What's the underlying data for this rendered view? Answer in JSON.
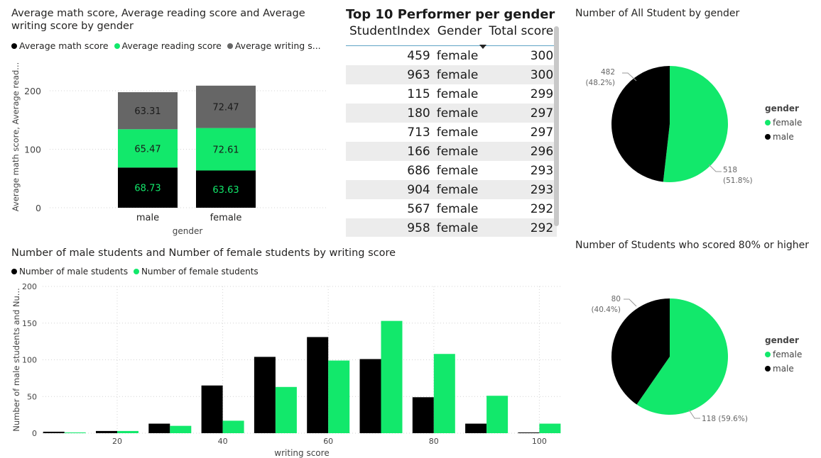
{
  "colors": {
    "math": "#000000",
    "reading": "#12e86b",
    "writing": "#666666",
    "female": "#12e86b",
    "male": "#000000",
    "grid": "#d4d4d4",
    "axis_text": "#444444"
  },
  "stacked": {
    "title_line1": "Average math score, Average reading score and Average",
    "title_line2": "writing score by gender",
    "legend": [
      "Average math score",
      "Average reading score",
      "Average writing s..."
    ],
    "ylabel": "Average math score, Average read...",
    "xlabel": "gender",
    "yticks": [
      "0",
      "100",
      "200"
    ]
  },
  "table": {
    "title": "Top 10 Performer per gender",
    "headers": [
      "StudentIndex",
      "Gender",
      "Total score"
    ],
    "rows": [
      [
        "459",
        "female",
        "300"
      ],
      [
        "963",
        "female",
        "300"
      ],
      [
        "115",
        "female",
        "299"
      ],
      [
        "180",
        "female",
        "297"
      ],
      [
        "713",
        "female",
        "297"
      ],
      [
        "166",
        "female",
        "296"
      ],
      [
        "686",
        "female",
        "293"
      ],
      [
        "904",
        "female",
        "293"
      ],
      [
        "567",
        "female",
        "292"
      ],
      [
        "958",
        "female",
        "292"
      ]
    ]
  },
  "hist": {
    "title": "Number of male students and Number of female students by writing score",
    "legend": [
      "Number of male students",
      "Number of female students"
    ],
    "ylabel": "Number of male students and Nu...",
    "xlabel": "writing score",
    "yticks": [
      "0",
      "50",
      "100",
      "150",
      "200"
    ],
    "xticks": [
      "20",
      "40",
      "60",
      "80",
      "100"
    ]
  },
  "pie1": {
    "title": "Number of All Student by gender",
    "legend_title": "gender",
    "legend": [
      "female",
      "male"
    ],
    "label_male_1": "482",
    "label_male_2": "(48.2%)",
    "label_female_1": "518",
    "label_female_2": "(51.8%)"
  },
  "pie2": {
    "title": "Number of Students who scored 80% or higher",
    "legend_title": "gender",
    "legend": [
      "female",
      "male"
    ],
    "label_male_1": "80",
    "label_male_2": "(40.4%)",
    "label_female_1": "118 (59.6%)"
  },
  "chart_data": [
    {
      "type": "bar",
      "title": "Average math score, Average reading score and Average writing score by gender",
      "categories": [
        "male",
        "female"
      ],
      "series": [
        {
          "name": "Average math score",
          "values": [
            68.73,
            63.63
          ]
        },
        {
          "name": "Average reading score",
          "values": [
            65.47,
            72.61
          ]
        },
        {
          "name": "Average writing s...",
          "values": [
            63.31,
            72.47
          ]
        }
      ],
      "data_labels": [
        [
          "68.73",
          "63.63"
        ],
        [
          "65.47",
          "72.61"
        ],
        [
          "63.31",
          "72.47"
        ]
      ],
      "stacked": true,
      "ylim": [
        0,
        220
      ],
      "xlabel": "gender",
      "ylabel": "Average math score, Average read...",
      "legend": "top-left"
    },
    {
      "type": "bar",
      "title": "Number of male students and Number of female students by writing score",
      "x": [
        10,
        20,
        30,
        40,
        50,
        60,
        70,
        80,
        90,
        100
      ],
      "series": [
        {
          "name": "Number of male students",
          "values": [
            2,
            3,
            13,
            65,
            104,
            131,
            101,
            49,
            13,
            1
          ]
        },
        {
          "name": "Number of female students",
          "values": [
            1,
            3,
            10,
            17,
            63,
            99,
            153,
            108,
            51,
            13
          ]
        }
      ],
      "xlim": [
        8,
        105
      ],
      "ylim": [
        0,
        200
      ],
      "xlabel": "writing score",
      "ylabel": "Number of male students and Nu...",
      "legend": "top-left"
    },
    {
      "type": "pie",
      "title": "Number of All Student by gender",
      "categories": [
        "female",
        "male"
      ],
      "values": [
        518,
        482
      ],
      "percent": [
        51.8,
        48.2
      ],
      "legend": "right"
    },
    {
      "type": "pie",
      "title": "Number of Students who scored 80% or higher",
      "categories": [
        "female",
        "male"
      ],
      "values": [
        118,
        80
      ],
      "percent": [
        59.6,
        40.4
      ],
      "legend": "right"
    }
  ]
}
